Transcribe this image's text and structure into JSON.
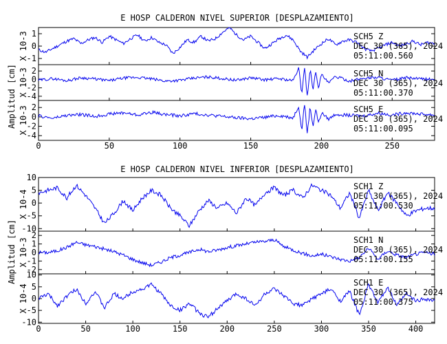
{
  "chart_data": [
    {
      "type": "line",
      "title": "E HOSP CALDERON NIVEL SUPERIOR [DESPLAZAMIENTO]",
      "ylabel": "Amplitud [cm]",
      "xlim": [
        0,
        280
      ],
      "xticks": [
        0,
        50,
        100,
        150,
        200,
        250
      ],
      "series": [
        {
          "station": "SCH5",
          "component": "Z",
          "date": "DEC 30 (365), 2024",
          "time": "05:11:00.560",
          "scale": "X 10-3",
          "ylim": [
            -1.5,
            1.5
          ],
          "yticks": [
            -1,
            0,
            1
          ],
          "x": [
            0,
            5,
            10,
            15,
            20,
            25,
            30,
            35,
            40,
            45,
            50,
            55,
            60,
            65,
            70,
            75,
            80,
            85,
            90,
            95,
            100,
            105,
            110,
            115,
            120,
            125,
            130,
            135,
            140,
            145,
            150,
            155,
            160,
            165,
            170,
            175,
            180,
            185,
            190,
            195,
            200,
            205,
            210,
            215,
            220,
            225,
            230,
            235,
            240,
            245,
            250,
            255,
            260,
            265,
            270,
            275,
            280
          ],
          "values": [
            -0.3,
            -0.5,
            -0.2,
            0.1,
            0.4,
            0.6,
            0.2,
            0.5,
            0.7,
            0.3,
            0.8,
            0.5,
            0.2,
            0.6,
            0.9,
            0.4,
            0.7,
            0.3,
            0.1,
            -0.6,
            -0.1,
            0.5,
            0.3,
            0.8,
            0.4,
            0.6,
            1.1,
            1.5,
            0.9,
            0.5,
            0.8,
            0.3,
            -0.2,
            0.2,
            0.6,
            0.9,
            0.5,
            -0.4,
            -0.9,
            -0.3,
            0.2,
            0.6,
            0.1,
            0.4,
            0.5,
            0.3,
            -0.2,
            -0.4,
            -0.2,
            0.1,
            0.3,
            0.0,
            0.2,
            0.4,
            0.1,
            0.3,
            0.2
          ]
        },
        {
          "station": "SCH5",
          "component": "N",
          "date": "DEC 30 (365), 2024",
          "time": "05:11:00.370",
          "scale": "X 10-3",
          "ylim": [
            -5,
            3.5
          ],
          "yticks": [
            -4,
            -2,
            0,
            2
          ],
          "x": [
            0,
            10,
            20,
            30,
            40,
            50,
            60,
            70,
            80,
            90,
            100,
            110,
            120,
            130,
            140,
            150,
            160,
            170,
            180,
            184,
            186,
            188,
            190,
            192,
            194,
            196,
            198,
            200,
            205,
            210,
            220,
            230,
            240,
            250,
            260,
            270,
            280
          ],
          "values": [
            -0.2,
            0.2,
            -0.3,
            0.4,
            0.1,
            -0.3,
            0.3,
            0.5,
            0.1,
            -0.4,
            -0.2,
            0.3,
            0.6,
            0.2,
            -0.2,
            0.4,
            -0.1,
            0.2,
            -0.3,
            2.8,
            -3.8,
            3.2,
            -4.2,
            2.6,
            -2.4,
            1.8,
            -2.0,
            1.2,
            -0.9,
            0.7,
            -0.4,
            0.3,
            0.5,
            -0.2,
            0.4,
            0.1,
            0.0
          ]
        },
        {
          "station": "SCH5",
          "component": "E",
          "date": "DEC 30 (365), 2024",
          "time": "05:11:00.095",
          "scale": "X 10-3",
          "ylim": [
            -5,
            3.5
          ],
          "yticks": [
            -4,
            -2,
            0,
            2
          ],
          "x": [
            0,
            10,
            20,
            30,
            40,
            50,
            60,
            70,
            80,
            90,
            100,
            110,
            120,
            130,
            140,
            150,
            160,
            170,
            180,
            184,
            186,
            188,
            190,
            192,
            194,
            196,
            198,
            200,
            205,
            210,
            220,
            230,
            240,
            250,
            260,
            270,
            280
          ],
          "values": [
            0.2,
            -0.3,
            0.3,
            0.5,
            0.1,
            0.6,
            0.9,
            0.4,
            1.0,
            0.5,
            0.2,
            0.7,
            0.4,
            0.1,
            -0.2,
            -0.4,
            -0.1,
            0.3,
            -0.2,
            2.4,
            -3.2,
            3.0,
            -3.6,
            2.2,
            -2.0,
            1.6,
            -1.4,
            0.9,
            -0.5,
            0.6,
            0.3,
            0.2,
            0.8,
            0.4,
            0.9,
            0.6,
            0.4
          ]
        }
      ]
    },
    {
      "type": "line",
      "title": "E HOSP CALDERON NIVEL INFERIOR [DESPLAZAMIENTO]",
      "ylabel": "Amplitud [cm]",
      "xlim": [
        0,
        420
      ],
      "xticks": [
        0,
        50,
        100,
        150,
        200,
        250,
        300,
        350,
        400
      ],
      "series": [
        {
          "station": "SCH1",
          "component": "Z",
          "date": "DEC 30 (365), 2024",
          "time": "05:11:00.530",
          "scale": "X 10-4",
          "ylim": [
            -11,
            10
          ],
          "yticks": [
            -10,
            -5,
            0,
            5,
            10
          ],
          "x": [
            0,
            10,
            20,
            30,
            40,
            50,
            60,
            70,
            80,
            90,
            100,
            110,
            120,
            130,
            140,
            150,
            160,
            170,
            180,
            190,
            200,
            210,
            220,
            230,
            240,
            250,
            260,
            270,
            280,
            290,
            300,
            310,
            320,
            330,
            340,
            350,
            360,
            370,
            380,
            390,
            400,
            410,
            420
          ],
          "values": [
            4,
            5,
            6,
            2,
            7,
            3,
            -2,
            -8,
            -4,
            1,
            -3,
            2,
            5,
            3,
            -2,
            -5,
            -9,
            -3,
            1,
            -2,
            0,
            -4,
            2,
            -1,
            4,
            6,
            3,
            5,
            2,
            7,
            5,
            3,
            -2,
            4,
            -6,
            5,
            -3,
            4,
            0,
            -5,
            -3,
            -2,
            -2
          ]
        },
        {
          "station": "SCH1",
          "component": "N",
          "date": "DEC 30 (365), 2024",
          "time": "05:11:00.155",
          "scale": "X 10-3",
          "ylim": [
            -2.5,
            2.5
          ],
          "yticks": [
            -2,
            -1,
            0,
            1,
            2
          ],
          "x": [
            0,
            10,
            20,
            30,
            40,
            50,
            60,
            70,
            80,
            90,
            100,
            110,
            120,
            130,
            140,
            150,
            160,
            170,
            180,
            190,
            200,
            210,
            220,
            230,
            240,
            250,
            260,
            270,
            280,
            290,
            300,
            310,
            320,
            330,
            340,
            350,
            360,
            370,
            380,
            390,
            400,
            410,
            420
          ],
          "values": [
            0,
            0,
            0.2,
            0.6,
            1.2,
            0.9,
            0.7,
            0.4,
            0.1,
            -0.3,
            -0.8,
            -1.2,
            -1.5,
            -1.1,
            -0.6,
            -0.3,
            0.0,
            0.4,
            0.1,
            0.3,
            0.6,
            0.8,
            1.0,
            1.2,
            1.3,
            1.5,
            0.7,
            0.3,
            -0.1,
            -0.4,
            -0.2,
            -0.5,
            -0.8,
            -1.0,
            -0.6,
            0.5,
            -0.8,
            0.2,
            -0.3,
            -0.6,
            -0.2,
            0.0,
            -0.2
          ]
        },
        {
          "station": "SCH1",
          "component": "E",
          "date": "DEC 30 (365), 2024",
          "time": "05:11:00.375",
          "scale": "X 10-4",
          "ylim": [
            -10.5,
            10.5
          ],
          "yticks": [
            -10,
            -5,
            0,
            5,
            10
          ],
          "x": [
            0,
            10,
            20,
            30,
            40,
            50,
            60,
            70,
            80,
            90,
            100,
            110,
            120,
            130,
            140,
            150,
            160,
            170,
            180,
            190,
            200,
            210,
            220,
            230,
            240,
            250,
            260,
            270,
            280,
            290,
            300,
            310,
            320,
            330,
            340,
            350,
            360,
            370,
            380,
            390,
            400,
            410,
            420
          ],
          "values": [
            0,
            2,
            -3,
            1,
            4,
            -2,
            3,
            -4,
            2,
            0,
            3,
            4,
            6,
            2,
            -3,
            -5,
            -2,
            -6,
            -8,
            -4,
            -1,
            2,
            0,
            -3,
            2,
            4,
            1,
            -2,
            -3,
            0,
            2,
            4,
            -1,
            3,
            -7,
            6,
            -2,
            5,
            -3,
            2,
            -1,
            0,
            -1
          ]
        }
      ]
    }
  ]
}
